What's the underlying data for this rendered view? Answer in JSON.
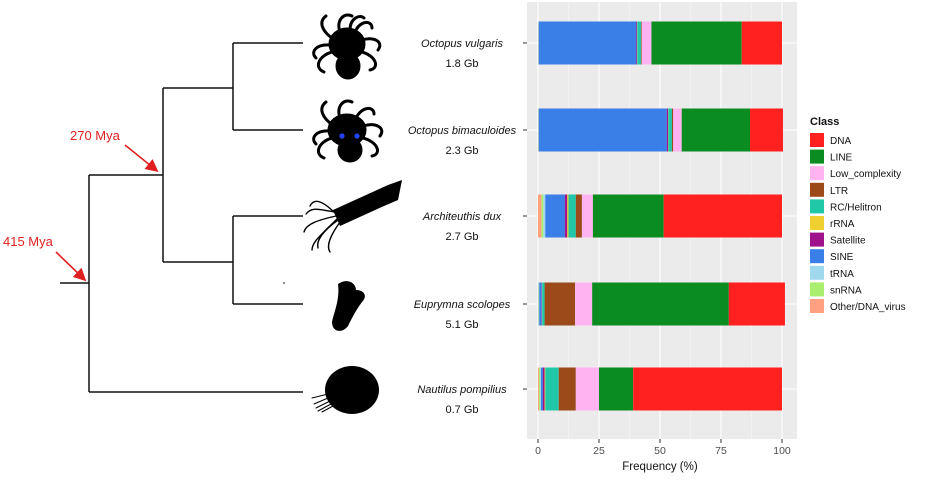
{
  "chart_data": {
    "type": "bar",
    "orientation": "horizontal",
    "stacked": true,
    "categories": [
      "Octopus vulgaris",
      "Octopus bimaculoides",
      "Architeuthis dux",
      "Euprymna scolopes",
      "Nautilus pompilius"
    ],
    "genome_sizes": [
      "1.8 Gb",
      "2.3 Gb",
      "2.7 Gb",
      "5.1 Gb",
      "0.7 Gb"
    ],
    "xlabel": "Frequency (%)",
    "xlim": [
      0,
      100
    ],
    "xticks": [
      0,
      25,
      50,
      75,
      100
    ],
    "grid": true,
    "legend": {
      "title": "Class",
      "position": "right"
    },
    "stack_order": [
      "Other/DNA_virus",
      "snRNA",
      "tRNA",
      "SINE",
      "Satellite",
      "rRNA",
      "RC/Helitron",
      "LTR",
      "Low_complexity",
      "LINE",
      "DNA"
    ],
    "series": [
      {
        "name": "DNA",
        "color": "#ff2020",
        "values": [
          16.5,
          13.5,
          48.5,
          23.0,
          61.0
        ]
      },
      {
        "name": "LINE",
        "color": "#0b8c20",
        "values": [
          37.0,
          28.0,
          29.0,
          56.0,
          14.0
        ]
      },
      {
        "name": "Low_complexity",
        "color": "#ffb3f0",
        "values": [
          4.0,
          3.5,
          4.5,
          7.0,
          9.5
        ]
      },
      {
        "name": "LTR",
        "color": "#9c4a1a",
        "values": [
          0.3,
          0.5,
          2.5,
          12.5,
          7.0
        ]
      },
      {
        "name": "RC/Helitron",
        "color": "#20c8a8",
        "values": [
          1.5,
          1.5,
          3.0,
          1.0,
          5.5
        ]
      },
      {
        "name": "rRNA",
        "color": "#f0d030",
        "values": [
          0.1,
          0.1,
          0.5,
          0.1,
          0.3
        ]
      },
      {
        "name": "Satellite",
        "color": "#a0118c",
        "values": [
          0.3,
          0.5,
          1.0,
          0.1,
          0.7
        ]
      },
      {
        "name": "SINE",
        "color": "#3a7ee8",
        "values": [
          40.0,
          52.5,
          8.0,
          1.0,
          0.8
        ]
      },
      {
        "name": "tRNA",
        "color": "#a0d8ee",
        "values": [
          0.1,
          0.1,
          0.8,
          0.3,
          0.3
        ]
      },
      {
        "name": "snRNA",
        "color": "#aaee70",
        "values": [
          0.1,
          0.1,
          0.8,
          0.1,
          0.5
        ]
      },
      {
        "name": "Other/DNA_virus",
        "color": "#ffa080",
        "values": [
          0.1,
          0.1,
          1.4,
          0.1,
          0.4
        ]
      }
    ],
    "tree_annotations": [
      {
        "label": "415 Mya",
        "node": "root"
      },
      {
        "label": "270 Mya",
        "node": "coleoid"
      }
    ]
  }
}
